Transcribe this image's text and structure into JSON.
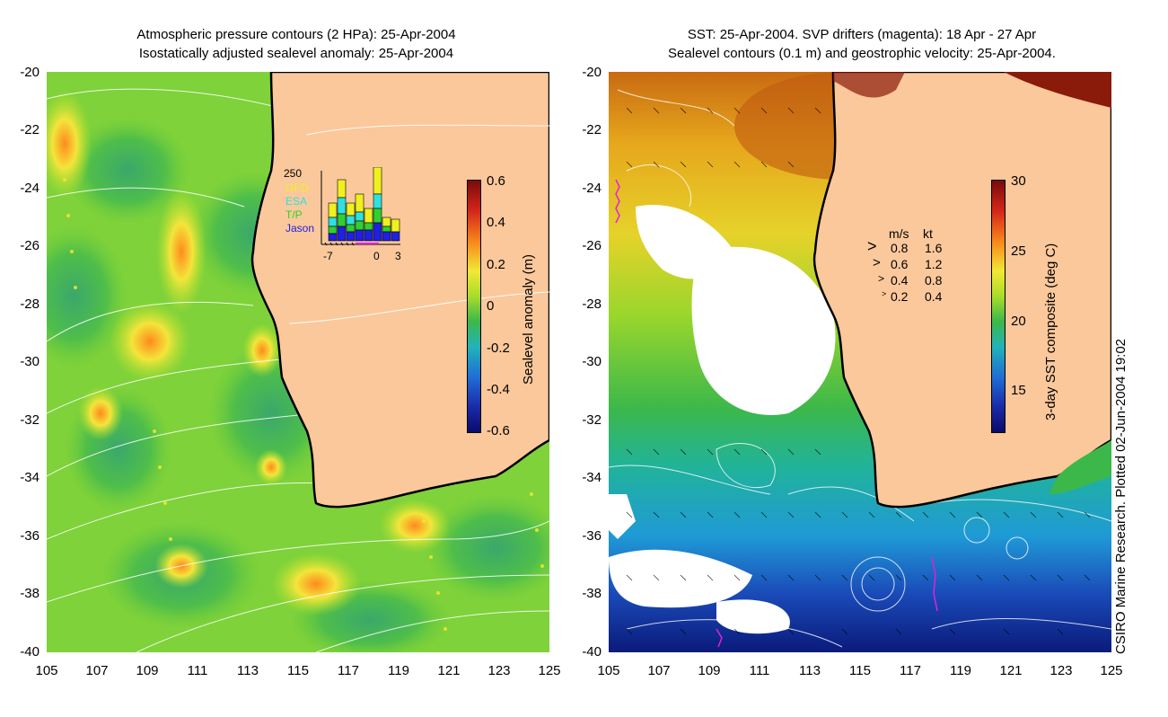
{
  "left_panel": {
    "title_line1": "Atmospheric pressure contours (2 HPa): 25-Apr-2004",
    "title_line2": "Isostatically adjusted sealevel anomaly: 25-Apr-2004",
    "y_ticks": [
      "-20",
      "-22",
      "-24",
      "-26",
      "-28",
      "-30",
      "-32",
      "-34",
      "-36",
      "-38",
      "-40"
    ],
    "x_ticks": [
      "105",
      "107",
      "109",
      "111",
      "113",
      "115",
      "117",
      "119",
      "121",
      "123",
      "125"
    ],
    "colorbar": {
      "label": "Sealevel anomaly (m)",
      "ticks": [
        "0.6",
        "0.4",
        "0.2",
        "0",
        "-0.2",
        "-0.4",
        "-0.6"
      ]
    },
    "inset": {
      "top_value": "250",
      "missions": [
        {
          "name": "GFO",
          "color": "#f0f020"
        },
        {
          "name": "ESA",
          "color": "#30e0e0"
        },
        {
          "name": "T/P",
          "color": "#30d030"
        },
        {
          "name": "Jason",
          "color": "#2020e0"
        }
      ],
      "x_ticks": [
        "-7",
        "0",
        "3"
      ]
    }
  },
  "right_panel": {
    "title_line1": "SST: 25-Apr-2004. SVP drifters (magenta): 18 Apr - 27 Apr",
    "title_line2": "Sealevel contours (0.1 m) and geostrophic velocity: 25-Apr-2004.",
    "y_ticks": [
      "-20",
      "-22",
      "-24",
      "-26",
      "-28",
      "-30",
      "-32",
      "-34",
      "-36",
      "-38",
      "-40"
    ],
    "x_ticks": [
      "105",
      "107",
      "109",
      "111",
      "113",
      "115",
      "117",
      "119",
      "121",
      "123",
      "125"
    ],
    "colorbar": {
      "label": "3-day SST composite (deg C)",
      "ticks": [
        "30",
        "25",
        "20",
        "15"
      ]
    },
    "velocity_legend": {
      "header_ms": "m/s",
      "header_kt": "kt",
      "rows": [
        {
          "ms": "0.8",
          "kt": "1.6"
        },
        {
          "ms": "0.6",
          "kt": "1.2"
        },
        {
          "ms": "0.4",
          "kt": "0.8"
        },
        {
          "ms": "0.2",
          "kt": "0.4"
        }
      ]
    }
  },
  "credit": "CSIRO Marine Research. Plotted 02-Jun-2004 19:02",
  "colors": {
    "land": "#fbc89b",
    "coast": "#000000",
    "drifters": "#e020e0"
  }
}
